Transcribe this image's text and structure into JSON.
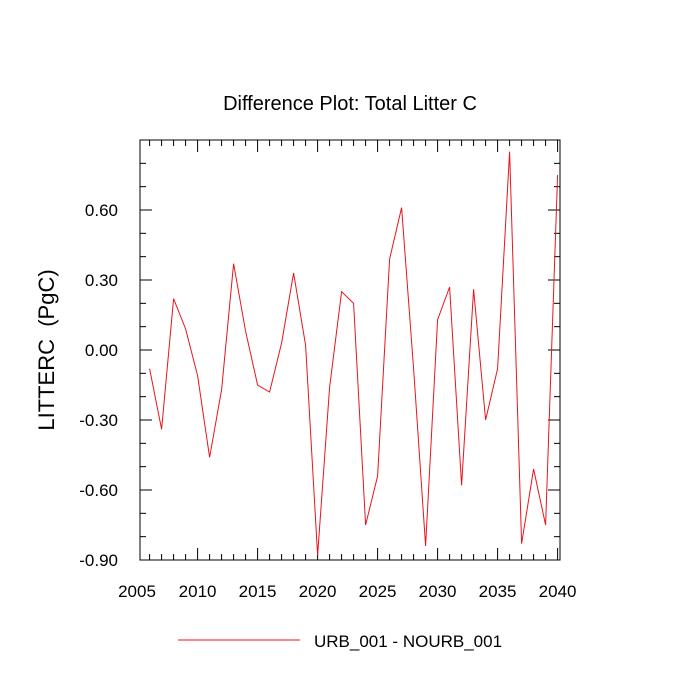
{
  "chart_data": {
    "type": "line",
    "title": "Difference Plot: Total Litter C",
    "xlabel": "",
    "ylabel": "LITTERC  (PgC)",
    "xlim": [
      2006,
      2040
    ],
    "ylim": [
      -0.9,
      0.9
    ],
    "x_ticks": [
      2005,
      2010,
      2015,
      2020,
      2025,
      2030,
      2035,
      2040
    ],
    "x_tick_labels": [
      "2005",
      "2010",
      "2015",
      "2020",
      "2025",
      "2030",
      "2035",
      "2040"
    ],
    "y_ticks": [
      -0.9,
      -0.6,
      -0.3,
      0.0,
      0.3,
      0.6
    ],
    "y_tick_labels": [
      "-0.90",
      "-0.60",
      "-0.30",
      "0.00",
      "0.30",
      "0.60"
    ],
    "grid": false,
    "legend_position": "bottom-center",
    "series": [
      {
        "name": "URB_001 - NOURB_001",
        "color": "#e8141c",
        "x": [
          2006,
          2007,
          2008,
          2009,
          2010,
          2011,
          2012,
          2013,
          2014,
          2015,
          2016,
          2017,
          2018,
          2019,
          2020,
          2021,
          2022,
          2023,
          2024,
          2025,
          2026,
          2027,
          2028,
          2029,
          2030,
          2031,
          2032,
          2033,
          2034,
          2035,
          2036,
          2037,
          2038,
          2039,
          2040
        ],
        "values": [
          -0.08,
          -0.34,
          0.22,
          0.09,
          -0.11,
          -0.46,
          -0.17,
          0.37,
          0.08,
          -0.15,
          -0.18,
          0.03,
          0.33,
          0.02,
          -0.88,
          -0.16,
          0.25,
          0.2,
          -0.75,
          -0.54,
          0.39,
          0.61,
          -0.08,
          -0.84,
          0.13,
          0.27,
          -0.58,
          0.26,
          -0.3,
          -0.08,
          0.85,
          -0.83,
          -0.51,
          -0.75,
          0.75
        ]
      }
    ]
  }
}
